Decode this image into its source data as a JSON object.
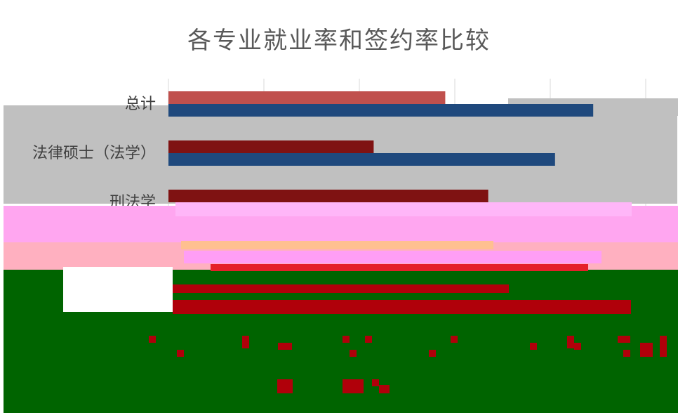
{
  "chart_data": {
    "type": "bar",
    "orientation": "horizontal",
    "title": "各专业就业率和签约率比较",
    "categories": [
      "总计",
      "法律硕士（法学）",
      "刑法学"
    ],
    "series": [
      {
        "color": "#c0504d",
        "values": [
          0.58,
          0.43,
          0.67
        ]
      },
      {
        "color": "#1f497d",
        "values": [
          0.89,
          0.81,
          null
        ]
      }
    ],
    "xlim": [
      0,
      1
    ],
    "grid": true,
    "legend": "none"
  },
  "overlays": {
    "gray": "#c0c0c0",
    "pink": "#ffa6f0",
    "salmon": "#ffb0c0",
    "green": "#006400",
    "red": "#b0000a",
    "white": "#ffffff"
  }
}
